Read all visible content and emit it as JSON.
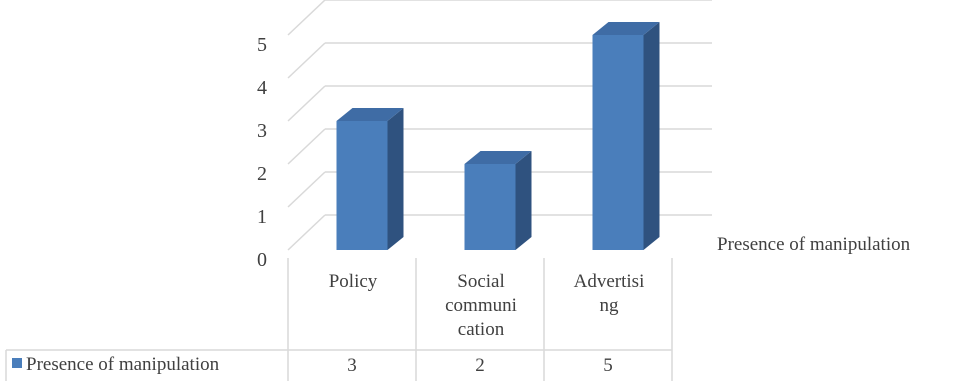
{
  "chart_data": {
    "type": "bar",
    "categories": [
      [
        "Policy"
      ],
      [
        "Social",
        "communi",
        "cation"
      ],
      [
        "Advertisi",
        "ng"
      ]
    ],
    "series": [
      {
        "name": "Presence of manipulation",
        "values": [
          3,
          2,
          5
        ],
        "color": "#4a7ebb"
      }
    ],
    "y_ticks": [
      "0",
      "1",
      "2",
      "3",
      "4",
      "5"
    ],
    "ylim": [
      0,
      5
    ],
    "grid": true,
    "three_d": true,
    "legend": "bottom-left (data table)",
    "axis_label_right": "Presence of manipulation",
    "data_table": {
      "legend_label": "Presence of manipulation",
      "values": [
        "3",
        "2",
        "5"
      ]
    },
    "colors": {
      "bar_front": "#4a7ebb",
      "bar_side": "#2f527f",
      "bar_top": "#3f6ca5",
      "grid": "#d9d9d9",
      "text": "#404040"
    }
  }
}
